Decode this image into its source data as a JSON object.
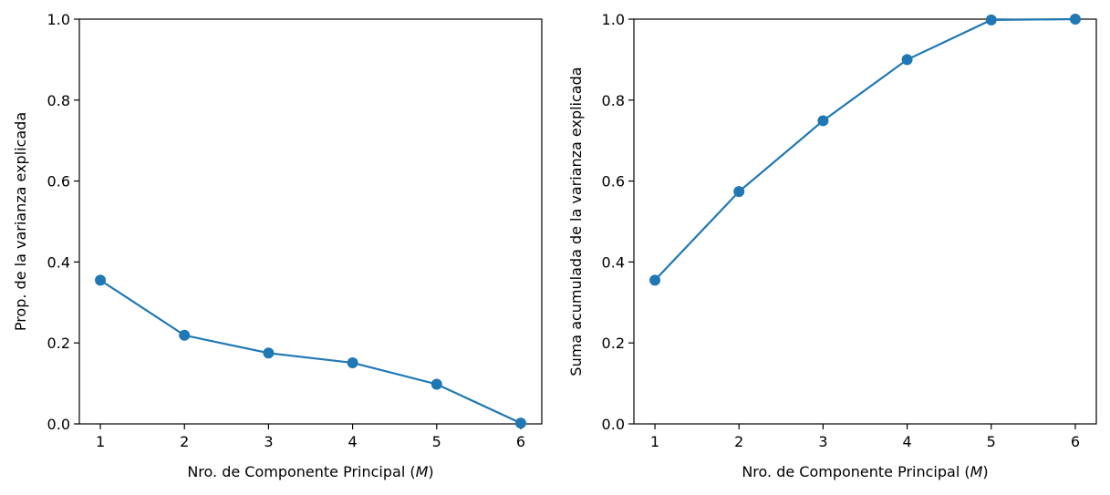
{
  "chart_data": [
    {
      "type": "line",
      "markers": true,
      "color": "#1f77b4",
      "x": [
        1,
        2,
        3,
        4,
        5,
        6
      ],
      "series": [
        {
          "values": [
            0.355,
            0.219,
            0.175,
            0.151,
            0.098,
            0.002
          ]
        }
      ],
      "xlabel_prefix": "Nro. de Componente Principal (",
      "xlabel_var": "M",
      "xlabel_suffix": ")",
      "ylabel": "Prop. de la varianza explicada",
      "xlim": [
        0.75,
        6.25
      ],
      "ylim": [
        0,
        1.0
      ],
      "xticks": [
        "1",
        "2",
        "3",
        "4",
        "5",
        "6"
      ],
      "yticks": [
        "0.0",
        "0.2",
        "0.4",
        "0.6",
        "0.8",
        "1.0"
      ],
      "grid": false
    },
    {
      "type": "line",
      "markers": true,
      "color": "#1f77b4",
      "x": [
        1,
        2,
        3,
        4,
        5,
        6
      ],
      "series": [
        {
          "values": [
            0.355,
            0.574,
            0.749,
            0.9,
            0.998,
            1.0
          ]
        }
      ],
      "xlabel_prefix": "Nro. de Componente Principal (",
      "xlabel_var": "M",
      "xlabel_suffix": ")",
      "ylabel": "Suma acumulada de la varianza explicada",
      "xlim": [
        0.75,
        6.25
      ],
      "ylim": [
        0,
        1.0
      ],
      "xticks": [
        "1",
        "2",
        "3",
        "4",
        "5",
        "6"
      ],
      "yticks": [
        "0.0",
        "0.2",
        "0.4",
        "0.6",
        "0.8",
        "1.0"
      ],
      "grid": false
    }
  ]
}
